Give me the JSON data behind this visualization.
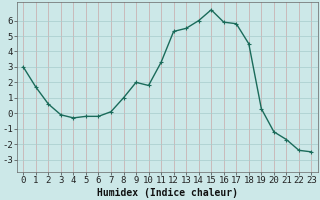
{
  "x": [
    0,
    1,
    2,
    3,
    4,
    5,
    6,
    7,
    8,
    9,
    10,
    11,
    12,
    13,
    14,
    15,
    16,
    17,
    18,
    19,
    20,
    21,
    22,
    23
  ],
  "y": [
    3.0,
    1.7,
    0.6,
    -0.1,
    -0.3,
    -0.2,
    -0.2,
    0.1,
    1.0,
    2.0,
    1.8,
    3.3,
    5.3,
    5.5,
    6.0,
    6.7,
    5.9,
    5.8,
    4.5,
    0.3,
    -1.2,
    -1.7,
    -2.4,
    -2.5
  ],
  "line_color": "#1a6b5a",
  "marker": "+",
  "marker_size": 3,
  "bg_color": "#cce8e8",
  "grid_vertical_color": "#c8a8a8",
  "grid_horizontal_color": "#a8cccc",
  "xlabel": "Humidex (Indice chaleur)",
  "xlim": [
    -0.5,
    23.5
  ],
  "ylim": [
    -3.8,
    7.2
  ],
  "yticks": [
    -3,
    -2,
    -1,
    0,
    1,
    2,
    3,
    4,
    5,
    6
  ],
  "xticks": [
    0,
    1,
    2,
    3,
    4,
    5,
    6,
    7,
    8,
    9,
    10,
    11,
    12,
    13,
    14,
    15,
    16,
    17,
    18,
    19,
    20,
    21,
    22,
    23
  ],
  "font_size": 6.5,
  "line_width": 1.0
}
